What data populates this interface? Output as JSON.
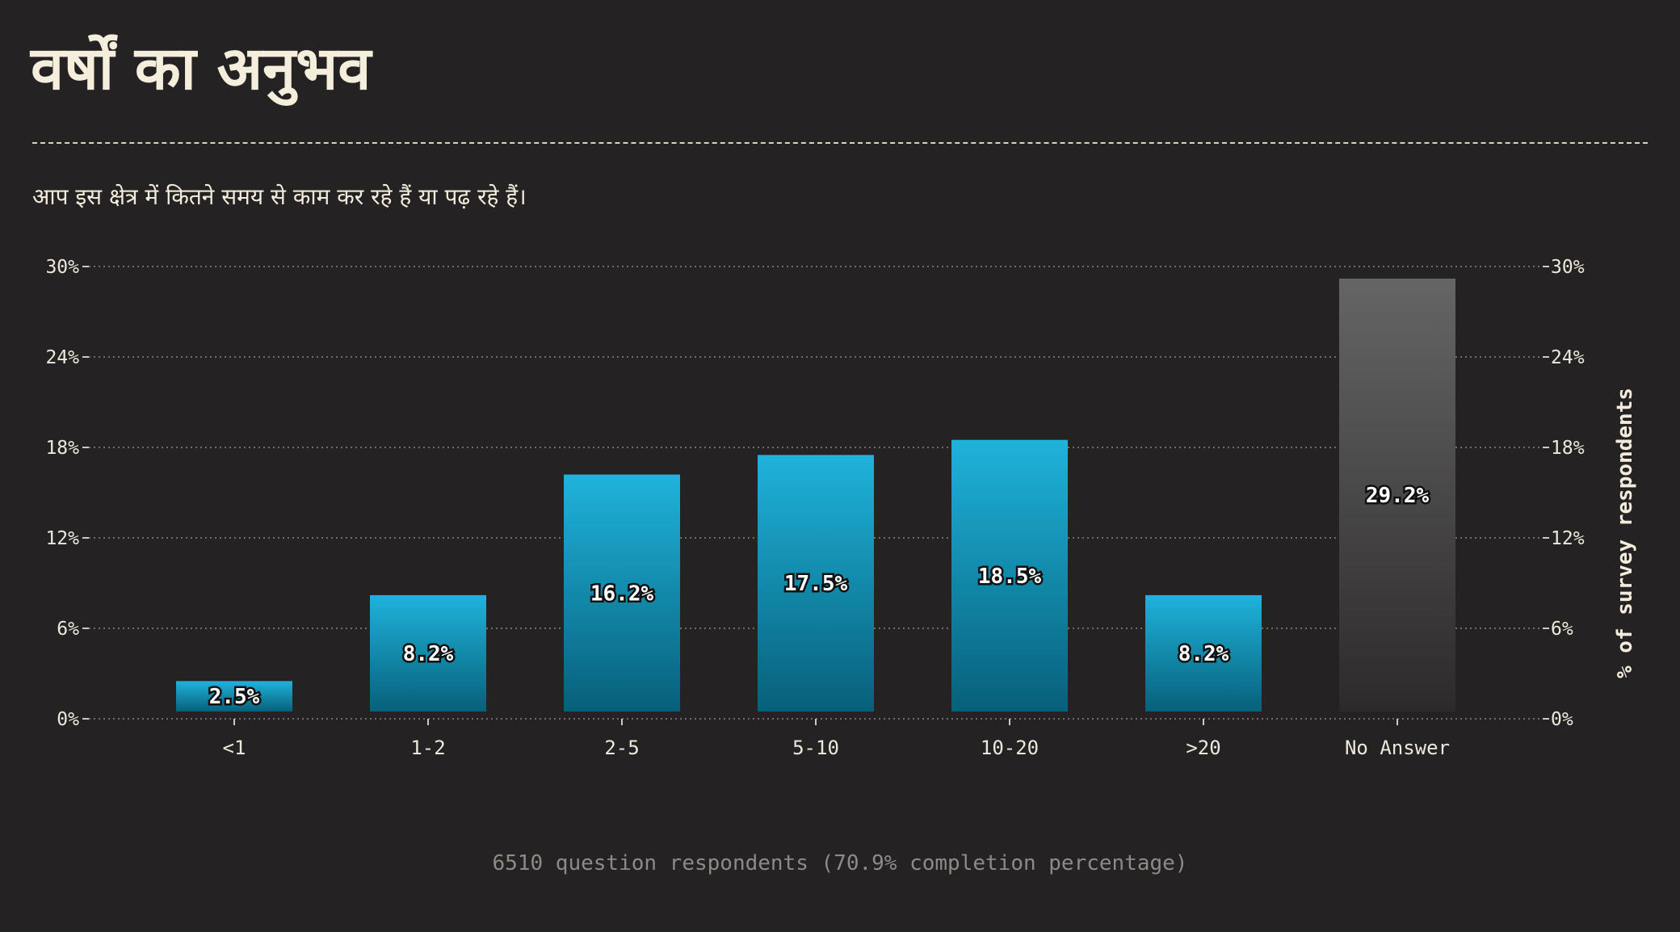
{
  "header": {
    "title": "वर्षों का अनुभव",
    "subtitle": "आप इस क्षेत्र में कितने समय से काम कर रहे हैं या पढ़ रहे हैं।"
  },
  "footer": {
    "note": "6510 question respondents (70.9% completion percentage)"
  },
  "colors": {
    "background": "#252223",
    "bar_top": "#1fb3db",
    "bar_bottom": "#07607a",
    "no_answer_top": "#666565",
    "no_answer_bottom": "#2c2a2a",
    "grid": "#8a8580"
  },
  "chart_data": {
    "type": "bar",
    "categories": [
      "<1",
      "1-2",
      "2-5",
      "5-10",
      "10-20",
      ">20",
      "No Answer"
    ],
    "values": [
      2.5,
      8.2,
      16.2,
      17.5,
      18.5,
      8.2,
      29.2
    ],
    "value_labels": [
      "2.5%",
      "8.2%",
      "16.2%",
      "17.5%",
      "18.5%",
      "8.2%",
      "29.2%"
    ],
    "ylabel": "% of survey respondents",
    "ylim": [
      0,
      30
    ],
    "yticks": [
      "0%",
      "6%",
      "12%",
      "18%",
      "24%",
      "30%"
    ],
    "ytick_values": [
      0,
      6,
      12,
      18,
      24,
      30
    ],
    "grid": true,
    "right_axis": true
  }
}
